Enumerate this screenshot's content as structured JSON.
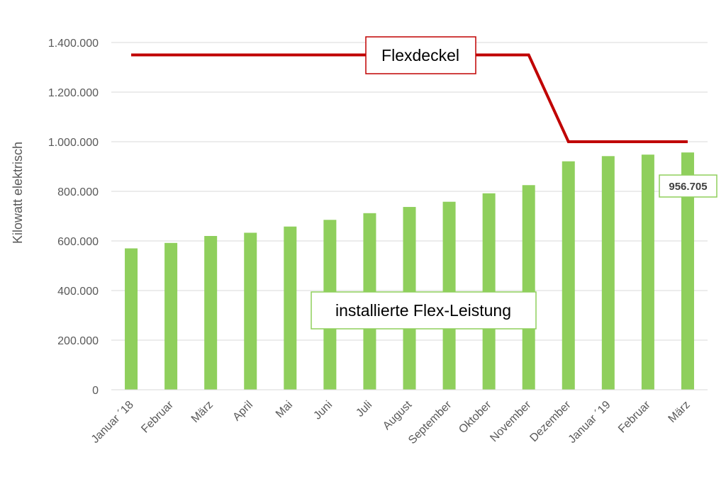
{
  "chart_data": {
    "type": "bar",
    "ylabel": "Kilowatt elektrisch",
    "xlabel": "",
    "title": "",
    "ylim": [
      0,
      1400000
    ],
    "y_ticks": [
      "0",
      "200.000",
      "400.000",
      "600.000",
      "800.000",
      "1.000.000",
      "1.200.000",
      "1.400.000"
    ],
    "y_tick_values": [
      0,
      200000,
      400000,
      600000,
      800000,
      1000000,
      1200000,
      1400000
    ],
    "grid": true,
    "categories": [
      "Januar ´18",
      "Februar",
      "März",
      "April",
      "Mai",
      "Juni",
      "Juli",
      "August",
      "September",
      "Oktober",
      "November",
      "Dezember",
      "Januar ´19",
      "Februar",
      "März"
    ],
    "series": [
      {
        "name": "installierte Flex-Leistung",
        "type": "bar",
        "color": "#8fcf5c",
        "values": [
          570000,
          592000,
          620000,
          633000,
          658000,
          685000,
          712000,
          737000,
          758000,
          792000,
          825000,
          921000,
          942000,
          948000,
          956705
        ]
      },
      {
        "name": "Flexdeckel",
        "type": "line",
        "color": "#c00000",
        "values": [
          1350000,
          1350000,
          1350000,
          1350000,
          1350000,
          1350000,
          1350000,
          1350000,
          1350000,
          1350000,
          1350000,
          1000000,
          1000000,
          1000000,
          1000000
        ]
      }
    ],
    "annotations": [
      {
        "text": "956.705",
        "category_index": 14,
        "series": "installierte Flex-Leistung"
      }
    ]
  }
}
